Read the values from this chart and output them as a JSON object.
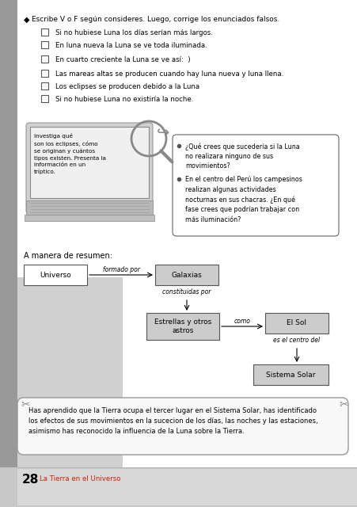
{
  "bg_color": "#e8e8e8",
  "page_bg": "#ffffff",
  "left_bar_color": "#999999",
  "mid_bar_color": "#d0d0d0",
  "footer_bar_color": "#c8c8c8",
  "title_bullet": "◆",
  "section1_title": "Escribe V o F según consideres. Luego, corrige los enunciados falsos.",
  "checkboxes": [
    "Si no hubiese Luna los días serían más largos.",
    "En luna nueva la Luna se ve toda iluminada.",
    "En cuarto creciente la Luna se ve así:  )",
    "Las mareas altas se producen cuando hay luna nueva y luna llena.",
    "Los eclipses se producen debido a la Luna",
    "Si no hubiese Luna no existiría la noche."
  ],
  "laptop_text": "Investiga qué\nson los eclipses, cómo\nse originan y cuántos\ntipos existen. Presenta la\ninformación en un\ntríptico.",
  "bubble_bullets": [
    "¿Qué crees que sucedería si la Luna\nno realizara ninguno de sus\nmovimientos?",
    "En el centro del Perú los campesinos\nrealizan algunas actividades\nnocturnas en sus chacras. ¿En qué\nfase crees que podrían trabajar con\nmás iluminación?"
  ],
  "summary_title": "A manera de resumen:",
  "nodes": {
    "universo": "Universo",
    "galaxias": "Galaxias",
    "estrellas": "Estrellas y otros\nastros",
    "sol": "El Sol",
    "sistema": "Sistema Solar"
  },
  "arrows": {
    "formado_por": "formado por",
    "constituidas_por": "constituidas por",
    "como": "como",
    "es_el_centro_del": "es el centro del"
  },
  "footer_text": "Has aprendido que la Tierra ocupa el tercer lugar en el Sistema Solar, has identificado\nlos efectos de sus movimientos en la sucecion de los días, las noches y las estaciones,\nasimismo has reconocido la influencia de la Luna sobre la Tierra.",
  "page_number": "28",
  "page_label": "La Tierra en el Universo",
  "node_bg_light": "#cccccc",
  "node_bg_white": "#ffffff",
  "red_color": "#cc2200"
}
